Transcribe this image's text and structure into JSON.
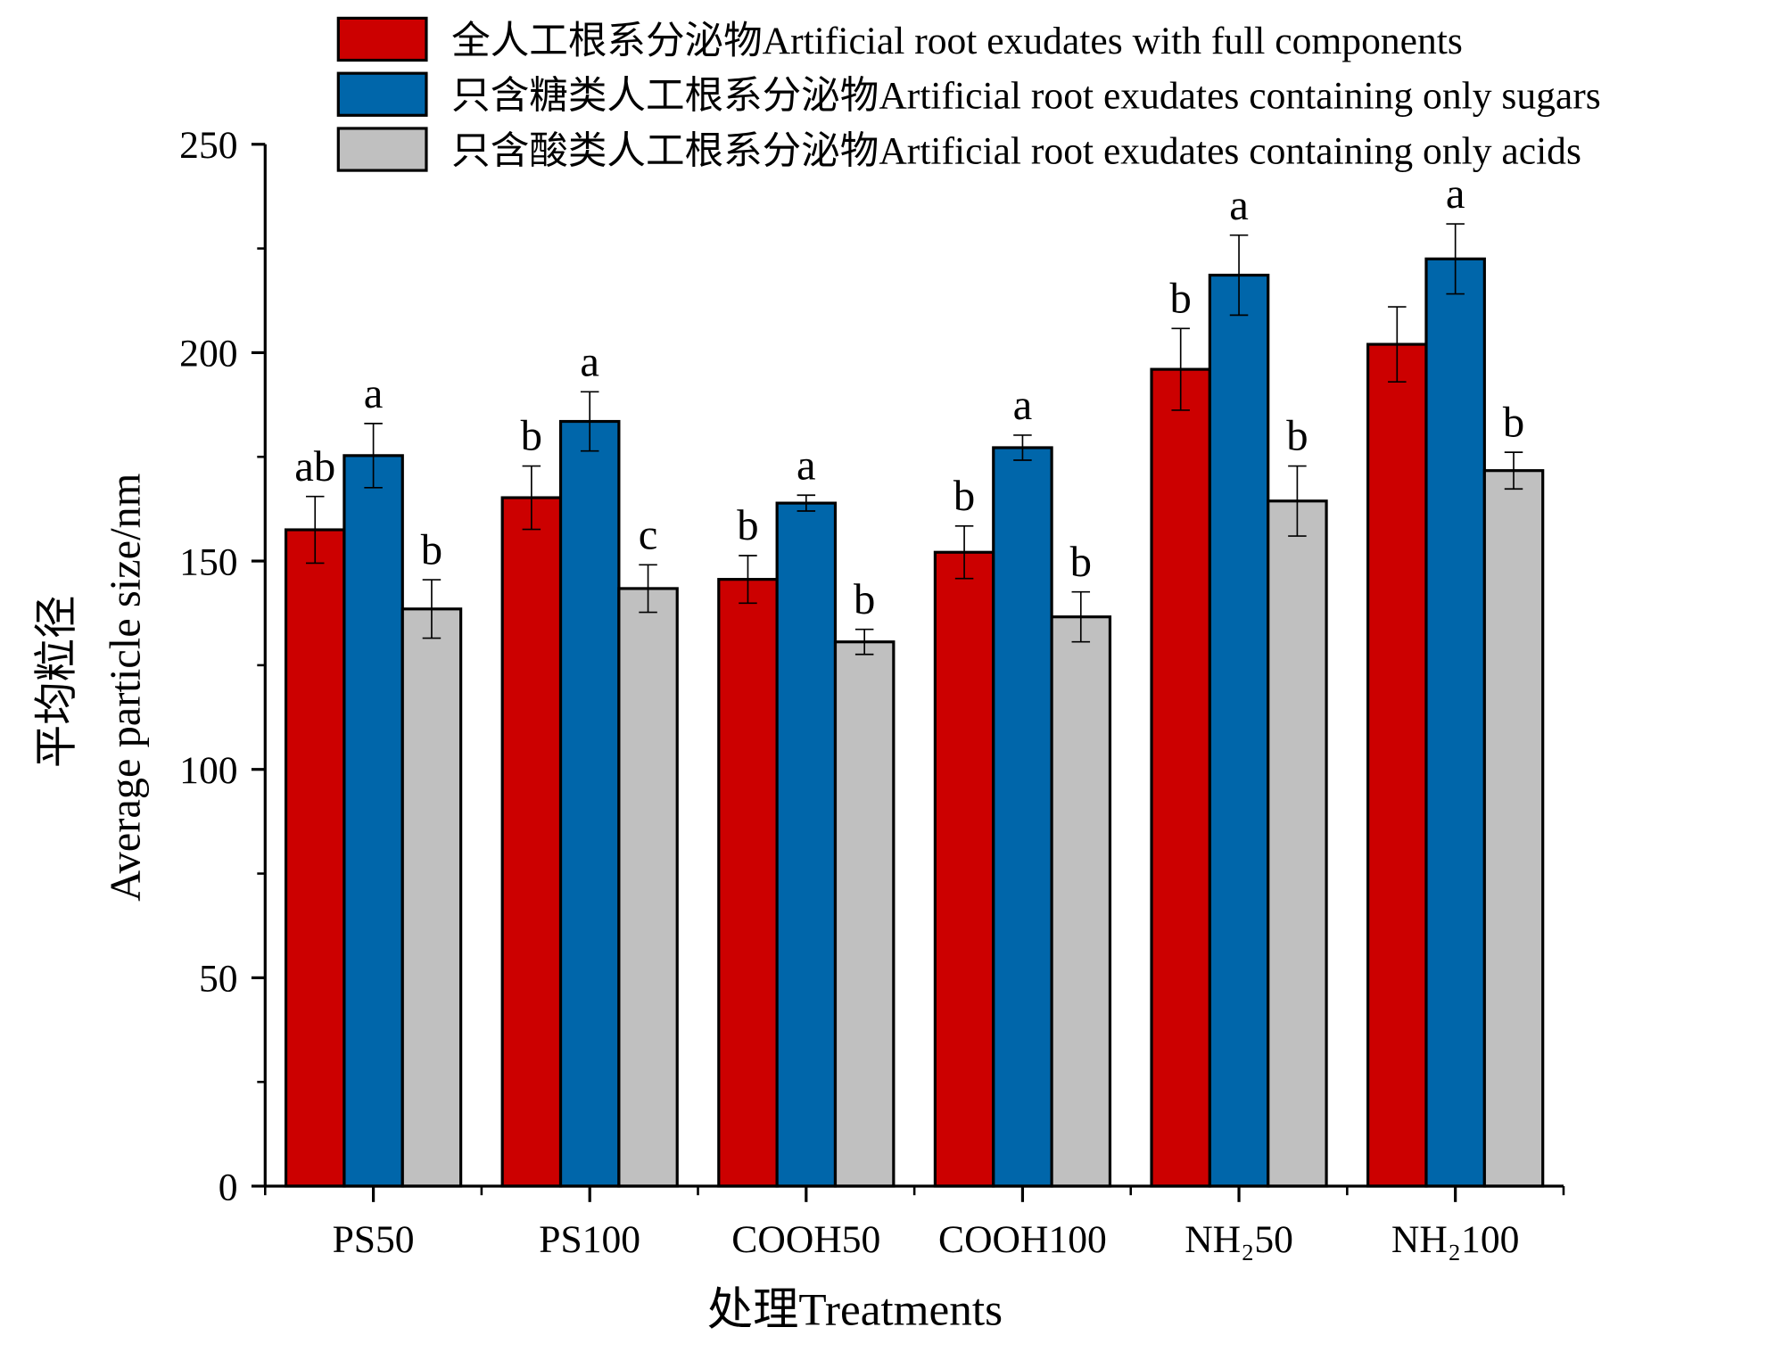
{
  "chart_data": {
    "type": "bar",
    "xlabel": "处理Treatments",
    "ylabel_cn": "平均粒径",
    "ylabel": "Average particle size/nm",
    "ylim": [
      0,
      250
    ],
    "yticks": [
      0,
      50,
      100,
      150,
      200,
      250
    ],
    "grid": false,
    "legend_position": "top",
    "categories": [
      "PS50",
      "PS100",
      "COOH50",
      "COOH100",
      "NH₂50",
      "NH₂100"
    ],
    "series": [
      {
        "name": "全人工根系分泌物Artificial root exudates with full components",
        "color": "#cc0000",
        "values": [
          157.5,
          165.2,
          145.6,
          152.1,
          196.0,
          202.0
        ],
        "errors": [
          8.0,
          7.6,
          5.7,
          6.3,
          9.8,
          9.0
        ],
        "letters": [
          "ab",
          "b",
          "b",
          "b",
          "b",
          ""
        ]
      },
      {
        "name": "只含糖类人工根系分泌物Artificial root exudates containing only sugars",
        "color": "#0066aa",
        "values": [
          175.3,
          183.5,
          163.9,
          177.2,
          218.6,
          222.5
        ],
        "errors": [
          7.7,
          7.1,
          1.9,
          3.0,
          9.6,
          8.4
        ],
        "letters": [
          "a",
          "a",
          "a",
          "a",
          "a",
          "a"
        ]
      },
      {
        "name": "只含酸类人工根系分泌物Artificial root exudates containing only acids",
        "color": "#c0c0c0",
        "values": [
          138.5,
          143.4,
          130.6,
          136.6,
          164.4,
          171.7
        ],
        "errors": [
          7.0,
          5.7,
          3.0,
          6.0,
          8.4,
          4.4
        ],
        "letters": [
          "b",
          "c",
          "b",
          "b",
          "b",
          "b"
        ]
      }
    ]
  }
}
